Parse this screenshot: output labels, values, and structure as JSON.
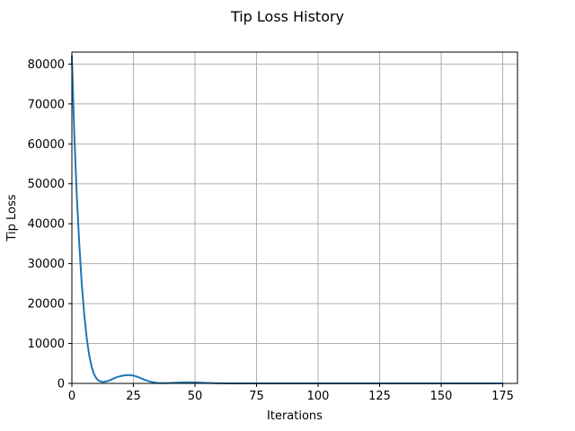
{
  "chart_data": {
    "type": "line",
    "title": "Tip Loss History",
    "xlabel": "Iterations",
    "ylabel": "Tip Loss",
    "xlim": [
      0,
      181
    ],
    "ylim": [
      0,
      83000
    ],
    "xticks": [
      0,
      25,
      50,
      75,
      100,
      125,
      150,
      175
    ],
    "yticks": [
      0,
      10000,
      20000,
      30000,
      40000,
      50000,
      60000,
      70000,
      80000
    ],
    "grid": true,
    "series": [
      {
        "color": "#1f77b4",
        "x": [
          0,
          1,
          2,
          3,
          4,
          5,
          6,
          7,
          8,
          9,
          10,
          11,
          12,
          13,
          14,
          15,
          16,
          17,
          18,
          19,
          20,
          21,
          22,
          23,
          24,
          25,
          26,
          27,
          28,
          29,
          30,
          31,
          32,
          33,
          34,
          35,
          36,
          38,
          40,
          42,
          44,
          46,
          48,
          50,
          52,
          54,
          56,
          58,
          60,
          65,
          70,
          75,
          80,
          90,
          100,
          110,
          120,
          130,
          140,
          150,
          160,
          170,
          175
        ],
        "y": [
          82000,
          62000,
          47000,
          35000,
          25000,
          17500,
          11500,
          7200,
          4200,
          2300,
          1200,
          650,
          420,
          400,
          500,
          700,
          950,
          1250,
          1500,
          1700,
          1850,
          1980,
          2050,
          2080,
          2050,
          1950,
          1780,
          1550,
          1300,
          1050,
          800,
          600,
          420,
          280,
          180,
          110,
          80,
          80,
          120,
          180,
          230,
          260,
          260,
          240,
          200,
          150,
          100,
          60,
          30,
          10,
          5,
          3,
          2,
          1,
          1,
          1,
          0,
          0,
          0,
          0,
          0,
          0,
          0
        ]
      }
    ]
  }
}
